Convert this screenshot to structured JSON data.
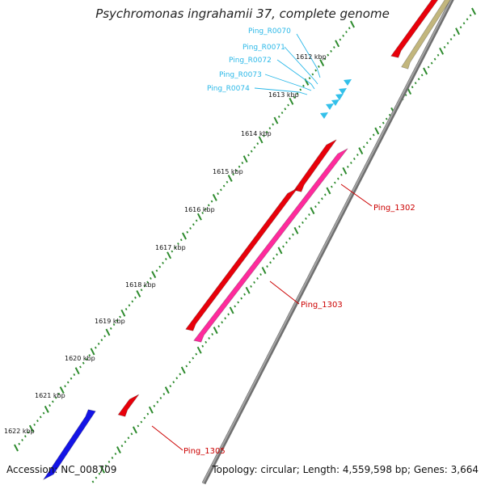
{
  "title": "Psychromonas ingrahamii 37, complete genome",
  "footer": {
    "accession": "Accession: NC_008709",
    "summary": "Topology: circular; Length: 4,559,598 bp; Genes: 3,664"
  },
  "kbp_ticks": [
    "1612 kbp",
    "1613 kbp",
    "1614 kbp",
    "1615 kbp",
    "1616 kbp",
    "1617 kbp",
    "1618 kbp",
    "1619 kbp",
    "1620 kbp",
    "1621 kbp",
    "1622 kbp"
  ],
  "rna_labels": [
    "Ping_R0070",
    "Ping_R0071",
    "Ping_R0072",
    "Ping_R0073",
    "Ping_R0074"
  ],
  "gene_labels": [
    "Ping_1302",
    "Ping_1303",
    "Ping_1305"
  ],
  "colors": {
    "backbone": "#8a8a8a",
    "tick": "#2e8b2e",
    "cds": "#e8000a",
    "cds_pink": "#ff2a9c",
    "cds_olive": "#c2b67d",
    "cds_blue": "#1414e6",
    "rna": "#33c0ea",
    "label_rna": "#2ab8e8",
    "label_gene": "#cc0000"
  }
}
